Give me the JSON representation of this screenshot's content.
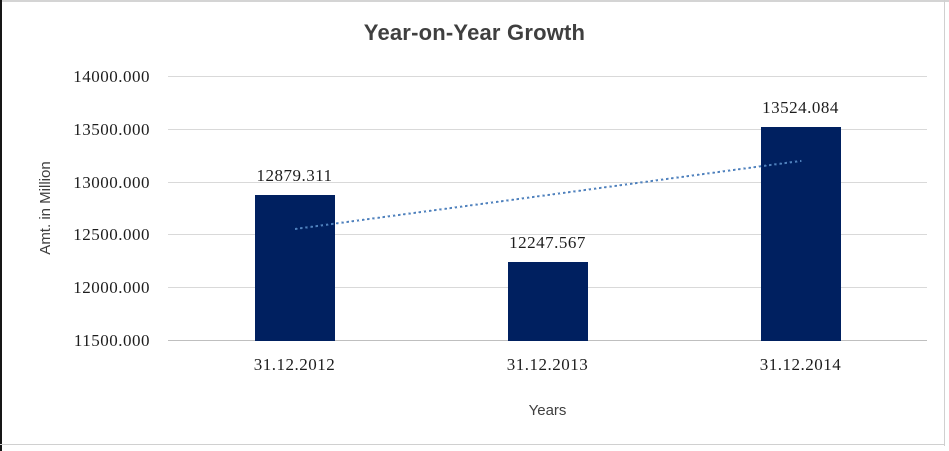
{
  "chart_data": {
    "type": "bar",
    "title": "Year-on-Year Growth",
    "categories": [
      "31.12.2012",
      "31.12.2013",
      "31.12.2014"
    ],
    "values": [
      12879.311,
      12247.567,
      13524.084
    ],
    "data_labels": [
      "12879.311",
      "12247.567",
      "13524.084"
    ],
    "xlabel": "Years",
    "ylabel": "Amt. in Million",
    "ylim": [
      11500,
      14000
    ],
    "ytick_step": 500,
    "ytick_labels": [
      "11500.000",
      "12000.000",
      "12500.000",
      "13000.000",
      "13500.000",
      "14000.000"
    ],
    "grid": true,
    "legend": "none",
    "bar_color": "#002060",
    "gridline_color": "#d9d9d9",
    "axis_color": "#bfbfbf",
    "trendline": {
      "style": "dotted",
      "color": "#4f81bd",
      "start_value": 12561.3,
      "end_value": 13206.0
    }
  }
}
